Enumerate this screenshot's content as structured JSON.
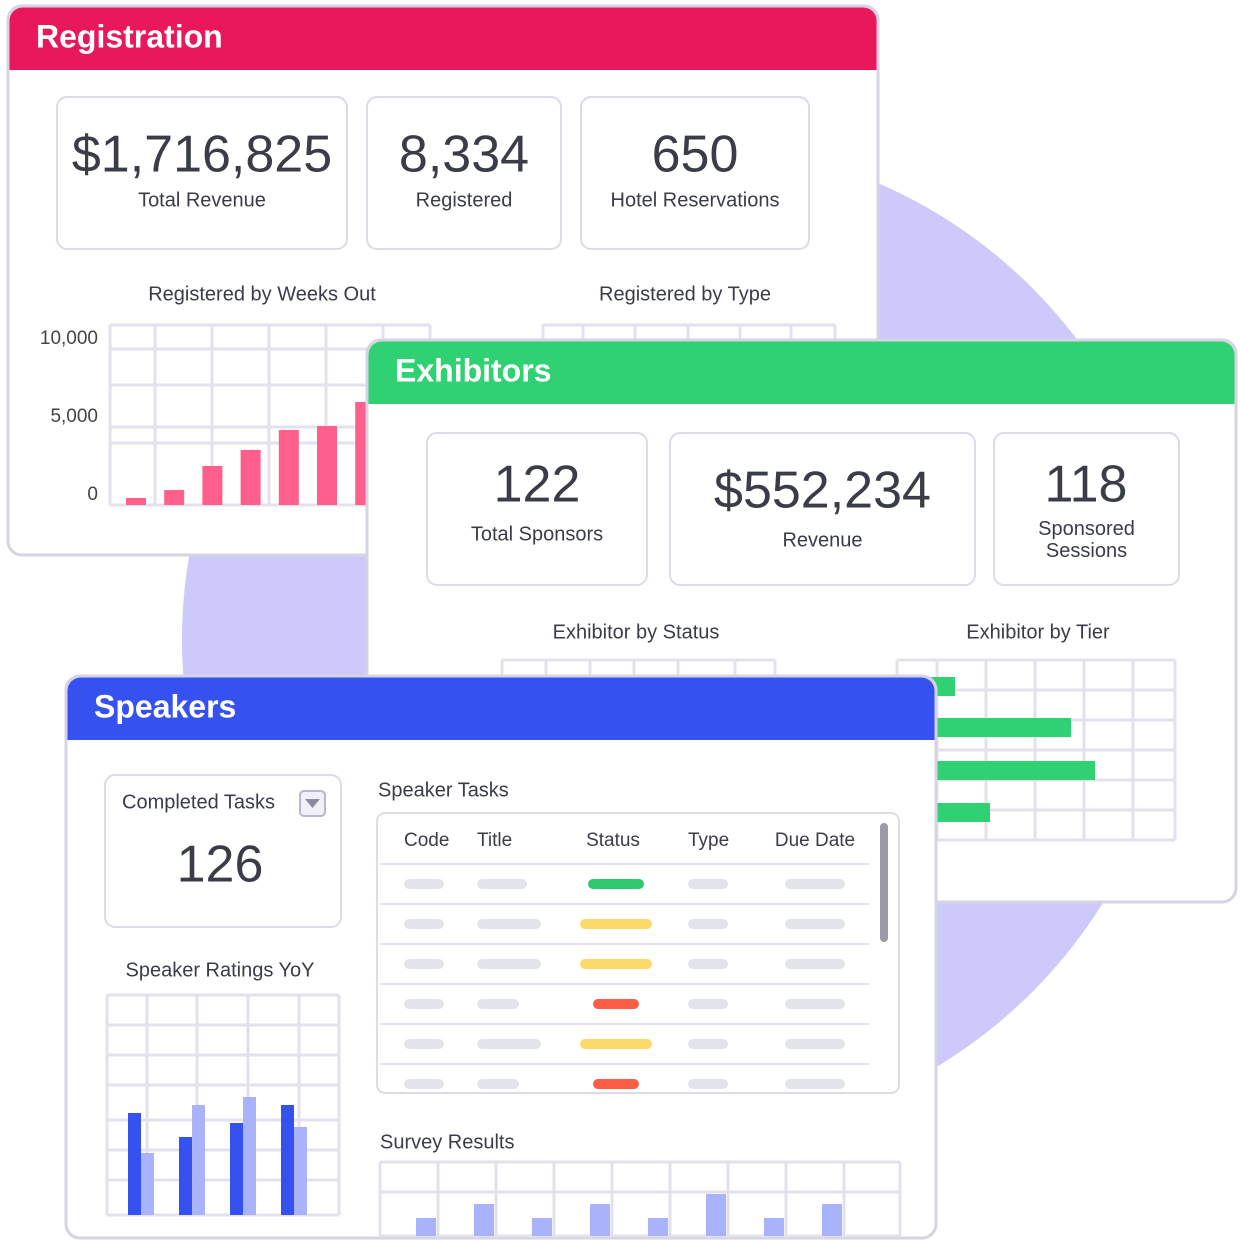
{
  "registration": {
    "title": "Registration",
    "kpis": [
      {
        "value": "$1,716,825",
        "label": "Total Revenue"
      },
      {
        "value": "8,334",
        "label": "Registered"
      },
      {
        "value": "650",
        "label": "Hotel Reservations"
      }
    ],
    "weeks_out_chart": {
      "title": "Registered by Weeks Out",
      "ylim": [
        0,
        10000
      ],
      "yticks": [
        {
          "value": 10000,
          "label": "10,000"
        },
        {
          "value": 5000,
          "label": "5,000"
        },
        0
      ],
      "values": [
        450,
        960,
        2500,
        3530,
        4810,
        5060,
        6600
      ]
    },
    "type_chart_title": "Registered by Type"
  },
  "exhibitors": {
    "title": "Exhibitors",
    "kpis": [
      {
        "value": "122",
        "label": "Total Sponsors"
      },
      {
        "value": "$552,234",
        "label": "Revenue"
      },
      {
        "value": "118",
        "label": "Sponsored Sessions"
      }
    ],
    "status_chart_title": "Exhibitor by Status",
    "tier_chart_title": "Exhibitor by Tier"
  },
  "speakers": {
    "title": "Speakers",
    "completed_tasks": {
      "label": "Completed Tasks",
      "value": "126"
    },
    "ratings_title": "Speaker Ratings YoY",
    "tasks": {
      "title": "Speaker Tasks",
      "columns": [
        "Code",
        "Title",
        "Status",
        "Type",
        "Due Date"
      ]
    },
    "survey_title": "Survey Results"
  }
}
